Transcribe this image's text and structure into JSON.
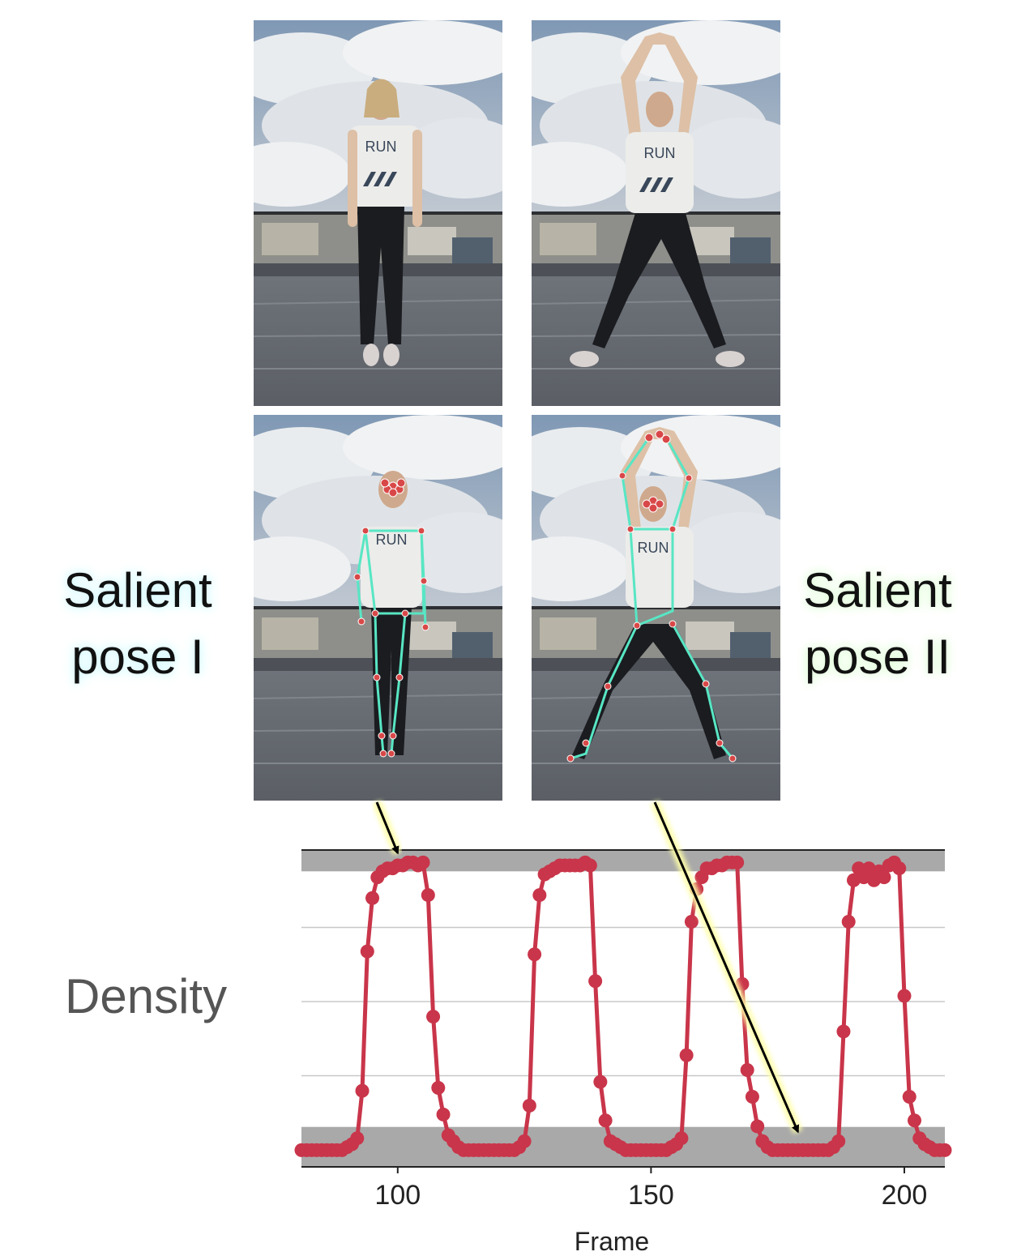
{
  "labels": {
    "pose_1": [
      "Salient",
      "pose I"
    ],
    "pose_2": [
      "Salient",
      "pose II"
    ],
    "shirt_text": "RUN"
  },
  "colors": {
    "series": "#c9354a",
    "skeleton": "#58e6c4",
    "band": "#a9a9a9",
    "arrow_glow": "#ffffa8"
  },
  "chart_data": {
    "type": "line",
    "title": "",
    "xlabel": "Frame",
    "ylabel": "Density",
    "xlim": [
      81,
      208
    ],
    "x_ticks": [
      100,
      150,
      200
    ],
    "grid": "horizontal",
    "legend": "none",
    "series": [
      {
        "values": [
          [
            81,
            0.01
          ],
          [
            82,
            0.01
          ],
          [
            83,
            0.01
          ],
          [
            84,
            0.01
          ],
          [
            85,
            0.01
          ],
          [
            86,
            0.01
          ],
          [
            87,
            0.01
          ],
          [
            88,
            0.01
          ],
          [
            89,
            0.01
          ],
          [
            90,
            0.02
          ],
          [
            91,
            0.03
          ],
          [
            92,
            0.05
          ],
          [
            93,
            0.21
          ],
          [
            94,
            0.68
          ],
          [
            95,
            0.86
          ],
          [
            96,
            0.93
          ],
          [
            97,
            0.95
          ],
          [
            98,
            0.96
          ],
          [
            99,
            0.96
          ],
          [
            100,
            0.97
          ],
          [
            101,
            0.97
          ],
          [
            102,
            0.98
          ],
          [
            103,
            0.98
          ],
          [
            104,
            0.97
          ],
          [
            105,
            0.98
          ],
          [
            106,
            0.87
          ],
          [
            107,
            0.46
          ],
          [
            108,
            0.22
          ],
          [
            109,
            0.13
          ],
          [
            110,
            0.06
          ],
          [
            111,
            0.04
          ],
          [
            112,
            0.02
          ],
          [
            113,
            0.01
          ],
          [
            114,
            0.01
          ],
          [
            115,
            0.01
          ],
          [
            116,
            0.01
          ],
          [
            117,
            0.01
          ],
          [
            118,
            0.01
          ],
          [
            119,
            0.01
          ],
          [
            120,
            0.01
          ],
          [
            121,
            0.01
          ],
          [
            122,
            0.01
          ],
          [
            123,
            0.01
          ],
          [
            124,
            0.02
          ],
          [
            125,
            0.04
          ],
          [
            126,
            0.16
          ],
          [
            127,
            0.67
          ],
          [
            128,
            0.87
          ],
          [
            129,
            0.94
          ],
          [
            130,
            0.95
          ],
          [
            131,
            0.96
          ],
          [
            132,
            0.97
          ],
          [
            133,
            0.97
          ],
          [
            134,
            0.97
          ],
          [
            135,
            0.97
          ],
          [
            136,
            0.97
          ],
          [
            137,
            0.98
          ],
          [
            138,
            0.97
          ],
          [
            139,
            0.58
          ],
          [
            140,
            0.24
          ],
          [
            141,
            0.11
          ],
          [
            142,
            0.04
          ],
          [
            143,
            0.03
          ],
          [
            144,
            0.02
          ],
          [
            145,
            0.01
          ],
          [
            146,
            0.01
          ],
          [
            147,
            0.01
          ],
          [
            148,
            0.01
          ],
          [
            149,
            0.01
          ],
          [
            150,
            0.01
          ],
          [
            151,
            0.01
          ],
          [
            152,
            0.01
          ],
          [
            153,
            0.01
          ],
          [
            154,
            0.02
          ],
          [
            155,
            0.03
          ],
          [
            156,
            0.05
          ],
          [
            157,
            0.33
          ],
          [
            158,
            0.78
          ],
          [
            159,
            0.89
          ],
          [
            160,
            0.93
          ],
          [
            161,
            0.96
          ],
          [
            162,
            0.96
          ],
          [
            163,
            0.97
          ],
          [
            164,
            0.97
          ],
          [
            165,
            0.98
          ],
          [
            166,
            0.98
          ],
          [
            167,
            0.98
          ],
          [
            168,
            0.57
          ],
          [
            169,
            0.28
          ],
          [
            170,
            0.19
          ],
          [
            171,
            0.09
          ],
          [
            172,
            0.04
          ],
          [
            173,
            0.02
          ],
          [
            174,
            0.01
          ],
          [
            175,
            0.01
          ],
          [
            176,
            0.01
          ],
          [
            177,
            0.01
          ],
          [
            178,
            0.01
          ],
          [
            179,
            0.01
          ],
          [
            180,
            0.01
          ],
          [
            181,
            0.01
          ],
          [
            182,
            0.01
          ],
          [
            183,
            0.01
          ],
          [
            184,
            0.01
          ],
          [
            185,
            0.01
          ],
          [
            186,
            0.02
          ],
          [
            187,
            0.04
          ],
          [
            188,
            0.41
          ],
          [
            189,
            0.78
          ],
          [
            190,
            0.92
          ],
          [
            191,
            0.96
          ],
          [
            192,
            0.93
          ],
          [
            193,
            0.96
          ],
          [
            194,
            0.92
          ],
          [
            195,
            0.95
          ],
          [
            196,
            0.93
          ],
          [
            197,
            0.97
          ],
          [
            198,
            0.98
          ],
          [
            199,
            0.96
          ],
          [
            200,
            0.53
          ],
          [
            201,
            0.19
          ],
          [
            202,
            0.11
          ],
          [
            203,
            0.05
          ],
          [
            204,
            0.03
          ],
          [
            205,
            0.02
          ],
          [
            206,
            0.01
          ],
          [
            207,
            0.01
          ],
          [
            208,
            0.01
          ]
        ]
      }
    ],
    "bands": [
      [
        0.95,
        1.0
      ],
      [
        0.0,
        0.05
      ]
    ],
    "arrows": [
      {
        "from_pose": "pose I",
        "to_frame": 100,
        "to_value": 0.99
      },
      {
        "from_pose": "pose II",
        "to_frame": 179,
        "to_value": 0.05
      }
    ]
  }
}
